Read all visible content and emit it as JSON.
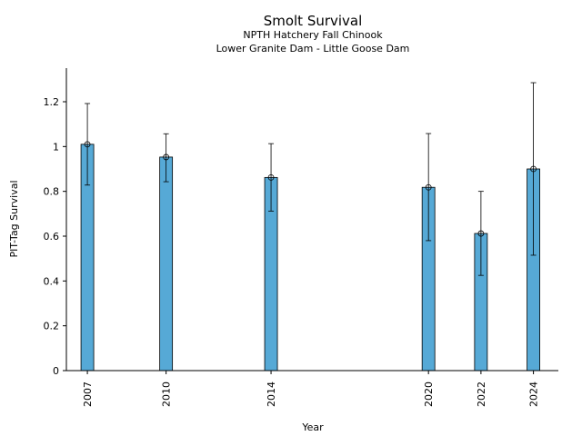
{
  "chart_data": {
    "type": "bar",
    "title": "Smolt Survival",
    "subtitle_1": "NPTH Hatchery Fall Chinook",
    "subtitle_2": "Lower Granite Dam - Little Goose Dam",
    "xlabel": "Year",
    "ylabel": "PIT-Tag Survival",
    "categories": [
      "2007",
      "2010",
      "2014",
      "2020",
      "2022",
      "2024"
    ],
    "x": [
      2007,
      2010,
      2014,
      2020,
      2022,
      2024
    ],
    "values": [
      1.01,
      0.953,
      0.862,
      0.818,
      0.612,
      0.9
    ],
    "error_low": [
      0.828,
      0.843,
      0.712,
      0.58,
      0.425,
      0.515
    ],
    "error_high": [
      1.192,
      1.057,
      1.013,
      1.058,
      0.8,
      1.285
    ],
    "xlim": [
      2006.2,
      2024.95
    ],
    "ylim": [
      0,
      1.35
    ],
    "yticks": [
      0,
      0.2,
      0.4,
      0.6,
      0.8,
      1,
      1.2
    ],
    "ytick_labels": [
      "0",
      "0.2",
      "0.4",
      "0.6",
      "0.8",
      "1",
      "1.2"
    ],
    "bar_color": "#56a9d6",
    "edge_color": "#000000",
    "grid": false
  }
}
